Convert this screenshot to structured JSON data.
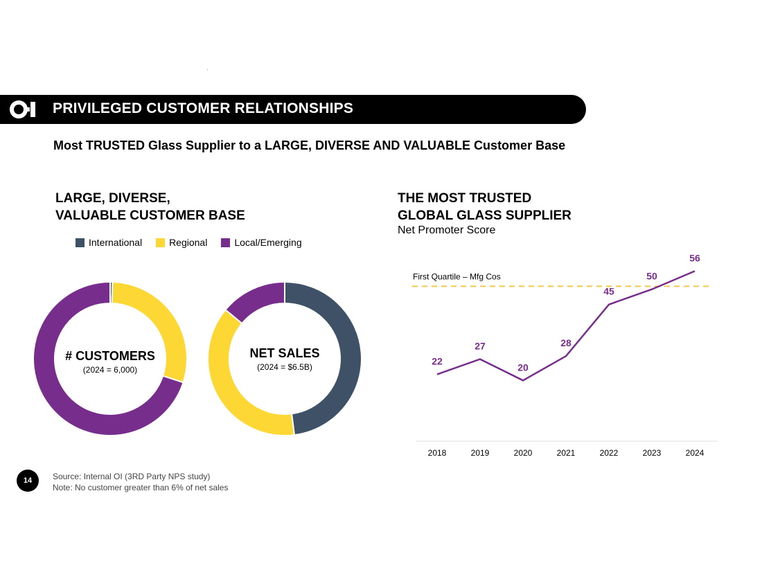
{
  "banner": {
    "title": "PRIVILEGED CUSTOMER RELATIONSHIPS",
    "logo_icon": "oi-logo-icon"
  },
  "subtitle": "Most TRUSTED Glass Supplier to a LARGE, DIVERSE AND VALUABLE Customer Base",
  "left_section": {
    "title_line1": "LARGE, DIVERSE,",
    "title_line2": "VALUABLE CUSTOMER BASE"
  },
  "right_section": {
    "title_line1": "THE MOST TRUSTED",
    "title_line2": "GLOBAL GLASS SUPPLIER",
    "metric": "Net Promoter Score"
  },
  "legend": [
    {
      "label": "International",
      "color": "#3f5166"
    },
    {
      "label": "Regional",
      "color": "#fdd835"
    },
    {
      "label": "Local/Emerging",
      "color": "#772d8b"
    }
  ],
  "chart_data": [
    {
      "type": "pie",
      "title": "# CUSTOMERS",
      "subtitle": "(2024 = 6,000)",
      "labels": [
        "International",
        "Regional",
        "Local/Emerging"
      ],
      "values": [
        0.5,
        29.5,
        70
      ],
      "colors": [
        "#3f5166",
        "#fdd835",
        "#772d8b"
      ]
    },
    {
      "type": "pie",
      "title": "NET SALES",
      "subtitle": "(2024 = $6.5B)",
      "labels": [
        "International",
        "Regional",
        "Local/Emerging"
      ],
      "values": [
        48,
        38,
        14
      ],
      "colors": [
        "#3f5166",
        "#fdd835",
        "#772d8b"
      ]
    },
    {
      "type": "line",
      "title": "Net Promoter Score",
      "x": [
        "2018",
        "2019",
        "2020",
        "2021",
        "2022",
        "2023",
        "2024"
      ],
      "values": [
        22,
        27,
        20,
        28,
        45,
        50,
        56
      ],
      "ylim": [
        0,
        70
      ],
      "line_color": "#772d8b",
      "reference_line": {
        "label": "First Quartile – Mfg Cos",
        "value": 51,
        "color": "#f2c744"
      }
    }
  ],
  "footer": {
    "page_number": "14",
    "source": "Source: Internal OI (3RD Party NPS study)",
    "note": "Note:   No customer greater than 6% of net sales"
  }
}
